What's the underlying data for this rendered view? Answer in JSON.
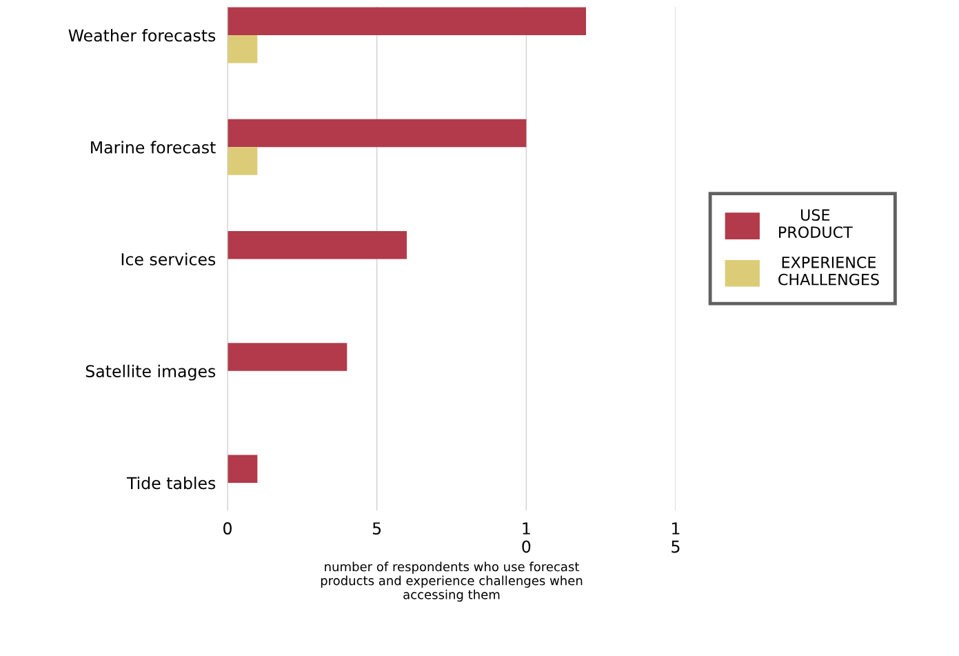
{
  "chart_data": {
    "type": "bar",
    "orientation": "horizontal",
    "categories": [
      "Weather forecasts",
      "Marine forecast",
      "Ice services",
      "Satellite images",
      "Tide tables"
    ],
    "series": [
      {
        "name": "USE\nPRODUCT",
        "color": "#b23a4b",
        "values": [
          12,
          10,
          6,
          4,
          1
        ]
      },
      {
        "name": "EXPERIENCE\nCHALLENGES",
        "color": "#ddcc77",
        "values": [
          1,
          1,
          0,
          0,
          0
        ]
      }
    ],
    "xlabel": "number of respondents who use forecast\nproducts and experience challenges when\naccessing them",
    "xlim": [
      0,
      15
    ],
    "xticks": [
      0,
      5,
      {
        "value": 10,
        "label": "1\n0"
      },
      {
        "value": 15,
        "label": "1\n5"
      }
    ],
    "grid": "x",
    "legend": "right"
  }
}
